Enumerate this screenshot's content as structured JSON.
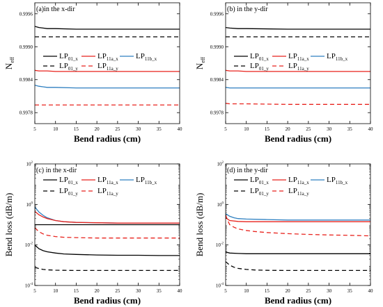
{
  "chart_data": [
    {
      "type": "line",
      "title": "(a)in the x-dir",
      "xlabel": "Bend radius (cm)",
      "ylabel": "N",
      "ylabel_sub": "eff",
      "scale": "linear",
      "xlim": [
        5,
        40
      ],
      "ylim": [
        0.9976,
        0.9998
      ],
      "xticks": [
        "5",
        "10",
        "15",
        "20",
        "25",
        "30",
        "35",
        "40"
      ],
      "yticks": [
        {
          "v": 0.9978,
          "label": "0.9978"
        },
        {
          "v": 0.9984,
          "label": "0.9984"
        },
        {
          "v": 0.999,
          "label": "0.9990"
        },
        {
          "v": 0.9996,
          "label": "0.9996"
        }
      ],
      "legend": {
        "placement": "center",
        "items": [
          {
            "base": "LP",
            "sub": "01_x",
            "color": "#000000",
            "dash": false
          },
          {
            "base": "LP",
            "sub": "11a_x",
            "color": "#e8221c",
            "dash": false
          },
          {
            "base": "LP",
            "sub": "11b_x",
            "color": "#2e7fc0",
            "dash": false
          },
          {
            "base": "LP",
            "sub": "01_y",
            "color": "#000000",
            "dash": true
          },
          {
            "base": "LP",
            "sub": "11a_y",
            "color": "#e8221c",
            "dash": true
          }
        ]
      },
      "series": [
        {
          "color": "#000000",
          "dash": false,
          "x": [
            5,
            6,
            7,
            8,
            10,
            15,
            20,
            25,
            30,
            35,
            40
          ],
          "y": [
            0.99937,
            0.99935,
            0.99934,
            0.99933,
            0.99933,
            0.99932,
            0.99932,
            0.99932,
            0.99932,
            0.99932,
            0.99932
          ]
        },
        {
          "color": "#000000",
          "dash": true,
          "x": [
            5,
            40
          ],
          "y": [
            0.99918,
            0.99918
          ]
        },
        {
          "color": "#e8221c",
          "dash": false,
          "x": [
            5,
            6,
            8,
            10,
            20,
            40
          ],
          "y": [
            0.99857,
            0.99856,
            0.99856,
            0.99855,
            0.99855,
            0.99855
          ]
        },
        {
          "color": "#2e7fc0",
          "dash": false,
          "x": [
            5,
            6,
            7,
            8,
            10,
            15,
            20,
            30,
            40
          ],
          "y": [
            0.9983,
            0.99828,
            0.99827,
            0.99826,
            0.99826,
            0.99825,
            0.99825,
            0.99825,
            0.99825
          ]
        },
        {
          "color": "#e8221c",
          "dash": true,
          "x": [
            5,
            40
          ],
          "y": [
            0.99794,
            0.99794
          ]
        }
      ]
    },
    {
      "type": "line",
      "title": "(b) in the y-dir",
      "xlabel": "Bend radius (cm)",
      "ylabel": "N",
      "ylabel_sub": "eff",
      "scale": "linear",
      "xlim": [
        5,
        40
      ],
      "ylim": [
        0.9976,
        0.9998
      ],
      "xticks": [
        "5",
        "10",
        "15",
        "20",
        "25",
        "30",
        "35",
        "40"
      ],
      "yticks": [
        {
          "v": 0.9978,
          "label": "0.9978"
        },
        {
          "v": 0.9984,
          "label": "0.9984"
        },
        {
          "v": 0.999,
          "label": "0.9990"
        },
        {
          "v": 0.9996,
          "label": "0.9996"
        }
      ],
      "legend": {
        "placement": "center",
        "items": [
          {
            "base": "LP",
            "sub": "01_x",
            "color": "#000000",
            "dash": false
          },
          {
            "base": "LP",
            "sub": "11a_x",
            "color": "#e8221c",
            "dash": false
          },
          {
            "base": "LP",
            "sub": "11b_x",
            "color": "#2e7fc0",
            "dash": false
          },
          {
            "base": "LP",
            "sub": "01_y",
            "color": "#000000",
            "dash": true
          },
          {
            "base": "LP",
            "sub": "11a_y",
            "color": "#e8221c",
            "dash": true
          }
        ]
      },
      "series": [
        {
          "color": "#000000",
          "dash": false,
          "x": [
            5,
            6,
            8,
            10,
            20,
            40
          ],
          "y": [
            0.99935,
            0.99934,
            0.99933,
            0.99933,
            0.99932,
            0.99932
          ]
        },
        {
          "color": "#000000",
          "dash": true,
          "x": [
            5,
            40
          ],
          "y": [
            0.99918,
            0.99918
          ]
        },
        {
          "color": "#e8221c",
          "dash": false,
          "x": [
            5,
            6,
            8,
            10,
            20,
            40
          ],
          "y": [
            0.99857,
            0.99856,
            0.99856,
            0.99855,
            0.99855,
            0.99855
          ]
        },
        {
          "color": "#2e7fc0",
          "dash": false,
          "x": [
            5,
            6,
            8,
            10,
            20,
            40
          ],
          "y": [
            0.99826,
            0.99825,
            0.99825,
            0.99825,
            0.99825,
            0.99825
          ]
        },
        {
          "color": "#e8221c",
          "dash": true,
          "x": [
            5,
            6,
            8,
            10,
            20,
            40
          ],
          "y": [
            0.99797,
            0.99796,
            0.99796,
            0.99796,
            0.99795,
            0.99795
          ]
        }
      ]
    },
    {
      "type": "line",
      "title": "(c) in the x-dir",
      "xlabel": "Bend radius (cm)",
      "ylabel": "Bend loss (dB/m)",
      "scale": "log",
      "xlim": [
        5,
        40
      ],
      "ylim": [
        0.0001,
        100
      ],
      "xticks": [
        "5",
        "10",
        "15",
        "20",
        "25",
        "30",
        "35",
        "40"
      ],
      "yticks": [
        {
          "v": 0.0001,
          "base": "10",
          "exp": "-4"
        },
        {
          "v": 0.01,
          "base": "10",
          "exp": "-2"
        },
        {
          "v": 1,
          "base": "10",
          "exp": "0"
        },
        {
          "v": 100,
          "base": "10",
          "exp": "2"
        }
      ],
      "legend": {
        "placement": "top-right",
        "items": [
          {
            "base": "LP",
            "sub": "01_x",
            "color": "#000000",
            "dash": false
          },
          {
            "base": "LP",
            "sub": "11a_x",
            "color": "#e8221c",
            "dash": false
          },
          {
            "base": "LP",
            "sub": "11b_x",
            "color": "#2e7fc0",
            "dash": false
          },
          {
            "base": "LP",
            "sub": "01_y",
            "color": "#000000",
            "dash": true
          },
          {
            "base": "LP",
            "sub": "11a_y",
            "color": "#e8221c",
            "dash": true
          }
        ]
      },
      "series": [
        {
          "color": "#2e7fc0",
          "dash": false,
          "x": [
            5,
            6,
            7,
            8,
            10,
            12,
            15,
            20,
            25,
            30,
            35,
            40
          ],
          "y": [
            0.75,
            0.42,
            0.29,
            0.22,
            0.16,
            0.14,
            0.13,
            0.125,
            0.12,
            0.12,
            0.12,
            0.12
          ]
        },
        {
          "color": "#e8221c",
          "dash": false,
          "x": [
            5,
            6,
            7,
            8,
            10,
            12,
            15,
            20,
            25,
            30,
            35,
            40
          ],
          "y": [
            0.45,
            0.31,
            0.24,
            0.2,
            0.16,
            0.14,
            0.13,
            0.125,
            0.12,
            0.12,
            0.12,
            0.12
          ]
        },
        {
          "color": "#000000",
          "dash": false,
          "x": [
            5,
            40
          ],
          "y": [
            0.1,
            0.1
          ]
        },
        {
          "color": "#e8221c",
          "dash": true,
          "x": [
            5,
            6,
            7,
            8,
            10,
            12,
            15,
            20,
            25,
            30,
            35,
            40
          ],
          "y": [
            0.07,
            0.045,
            0.035,
            0.03,
            0.026,
            0.024,
            0.023,
            0.022,
            0.022,
            0.022,
            0.022,
            0.022
          ]
        },
        {
          "color": "#000000",
          "dash": false,
          "x": [
            5,
            6,
            7,
            8,
            10,
            12,
            15,
            20,
            25,
            30,
            35,
            40
          ],
          "y": [
            0.01,
            0.0065,
            0.0052,
            0.0046,
            0.004,
            0.0036,
            0.0034,
            0.0032,
            0.0031,
            0.0031,
            0.003,
            0.003
          ]
        },
        {
          "color": "#000000",
          "dash": true,
          "x": [
            5,
            6,
            7,
            8,
            10,
            12,
            15,
            20,
            25,
            30,
            35,
            40
          ],
          "y": [
            0.0008,
            0.00068,
            0.00062,
            0.00059,
            0.00057,
            0.00056,
            0.00055,
            0.00055,
            0.00055,
            0.00055,
            0.00055,
            0.00055
          ]
        }
      ]
    },
    {
      "type": "line",
      "title": "(d) in the y-dir",
      "xlabel": "Bend radius (cm)",
      "ylabel": "Bend loss (dB/m)",
      "scale": "log",
      "xlim": [
        5,
        40
      ],
      "ylim": [
        0.0001,
        100
      ],
      "xticks": [
        "5",
        "10",
        "15",
        "20",
        "25",
        "30",
        "35",
        "40"
      ],
      "yticks": [
        {
          "v": 0.0001,
          "base": "10",
          "exp": "-4"
        },
        {
          "v": 0.01,
          "base": "10",
          "exp": "-2"
        },
        {
          "v": 1,
          "base": "10",
          "exp": "0"
        },
        {
          "v": 100,
          "base": "10",
          "exp": "2"
        }
      ],
      "legend": {
        "placement": "top-right",
        "items": [
          {
            "base": "LP",
            "sub": "01_x",
            "color": "#000000",
            "dash": false
          },
          {
            "base": "LP",
            "sub": "11a_x",
            "color": "#e8221c",
            "dash": false
          },
          {
            "base": "LP",
            "sub": "11b_x",
            "color": "#2e7fc0",
            "dash": false
          },
          {
            "base": "LP",
            "sub": "01_y",
            "color": "#000000",
            "dash": true
          },
          {
            "base": "LP",
            "sub": "11a_y",
            "color": "#e8221c",
            "dash": true
          }
        ]
      },
      "series": [
        {
          "color": "#2e7fc0",
          "dash": false,
          "x": [
            5,
            5.5,
            6,
            7,
            8,
            10,
            15,
            20,
            30,
            40
          ],
          "y": [
            0.35,
            0.3,
            0.26,
            0.22,
            0.2,
            0.19,
            0.18,
            0.17,
            0.17,
            0.17
          ]
        },
        {
          "color": "#e8221c",
          "dash": false,
          "x": [
            5,
            6,
            8,
            10,
            15,
            20,
            30,
            40
          ],
          "y": [
            0.22,
            0.16,
            0.145,
            0.14,
            0.14,
            0.14,
            0.14,
            0.14
          ]
        },
        {
          "color": "#e8221c",
          "dash": true,
          "x": [
            5,
            5.5,
            6,
            7,
            8,
            10,
            12,
            15,
            20,
            25,
            30,
            35,
            40
          ],
          "y": [
            0.3,
            0.16,
            0.1,
            0.075,
            0.062,
            0.052,
            0.046,
            0.041,
            0.036,
            0.033,
            0.031,
            0.03,
            0.028
          ]
        },
        {
          "color": "#000000",
          "dash": false,
          "x": [
            5,
            6,
            8,
            10,
            15,
            20,
            30,
            40
          ],
          "y": [
            0.0045,
            0.004,
            0.0038,
            0.0037,
            0.0037,
            0.0037,
            0.0037,
            0.0037
          ]
        },
        {
          "color": "#000000",
          "dash": true,
          "x": [
            5,
            6,
            7,
            8,
            10,
            12,
            15,
            20,
            25,
            30,
            35,
            40
          ],
          "y": [
            0.0015,
            0.001,
            0.0008,
            0.0007,
            0.00062,
            0.00058,
            0.00056,
            0.00055,
            0.00055,
            0.00055,
            0.00055,
            0.00055
          ]
        }
      ]
    }
  ]
}
